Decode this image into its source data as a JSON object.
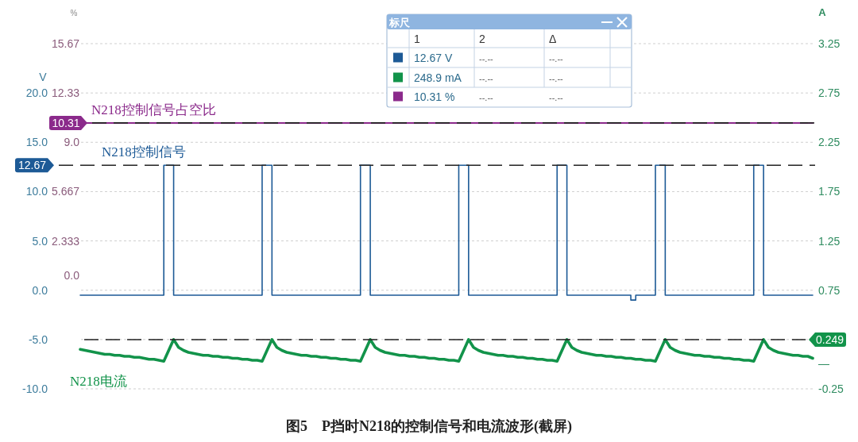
{
  "chart_data": [
    {
      "type": "line",
      "title": "图5　P挡时N218的控制信号和电流波形(截屏)",
      "ylabel": "V",
      "y2label": "A",
      "y3label": "%",
      "annotations": [
        "—"
      ],
      "grid": "y",
      "tick_labels": "y",
      "categories": [
        null,
        null,
        null,
        null,
        null,
        null,
        null,
        null,
        null,
        null,
        null,
        null,
        null,
        null,
        null,
        null,
        null,
        null,
        null,
        null,
        null,
        null,
        null,
        null,
        null,
        null,
        null,
        null,
        null,
        null,
        null,
        null,
        null,
        null,
        null,
        null,
        null,
        null,
        null,
        null,
        null,
        null,
        null,
        null,
        null,
        null,
        null,
        null,
        null,
        null,
        null,
        null,
        null,
        null,
        null,
        null,
        null,
        null,
        null,
        null,
        null,
        null,
        null,
        null,
        null,
        null,
        null,
        null,
        null,
        null,
        null,
        null,
        null,
        null,
        null,
        null,
        null,
        null,
        null,
        null,
        null,
        null,
        null,
        null,
        null,
        null,
        null,
        null,
        null,
        null,
        null,
        null,
        null,
        null,
        null,
        null,
        null,
        null,
        null,
        null,
        null,
        null,
        null,
        null,
        null,
        null,
        null,
        null,
        null,
        null,
        null,
        null,
        null,
        null,
        null,
        null,
        null,
        null,
        null,
        null,
        null,
        null,
        null,
        null,
        null,
        null,
        null,
        null,
        null,
        null,
        null,
        null,
        null,
        null,
        null,
        null,
        null,
        null,
        null,
        null,
        null,
        null,
        null,
        null,
        null,
        null,
        null,
        null,
        null,
        null
      ],
      "ylim": [
        -10,
        25
      ],
      "yticks": [
        {
          "value": -10,
          "label": "-10.0"
        },
        {
          "value": -5,
          "label": "-5.0"
        },
        {
          "value": 0,
          "label": "0.0"
        },
        {
          "value": 5,
          "label": "5.0"
        },
        {
          "value": 10,
          "label": "10.0"
        },
        {
          "value": 15,
          "label": "15.0"
        },
        {
          "value": 20,
          "label": "20.0"
        }
      ],
      "y2lim": [
        -0.25,
        3.25
      ],
      "y2ticks": [
        -0.25,
        {
          "value": 0.25,
          "label": null
        },
        0.75,
        1.25,
        1.75,
        2.25,
        2.75,
        3.25
      ],
      "y3lim": [
        -7.667,
        15.67
      ],
      "y3ticks": [
        {
          "value": 0,
          "label": "0.0"
        },
        2.333,
        5.667,
        {
          "value": 9,
          "label": "9.0"
        },
        12.33,
        15.67
      ],
      "series": [
        {
          "name": "N218控制信号",
          "type": "step",
          "color": "#1d5a96",
          "axis": "y",
          "values": [
            -0.5,
            -0.5,
            -0.5,
            -0.5,
            -0.5,
            -0.5,
            -0.5,
            -0.5,
            -0.5,
            -0.5,
            -0.5,
            -0.5,
            -0.5,
            -0.5,
            -0.5,
            -0.5,
            -0.5,
            12.67,
            12.67,
            -0.5,
            -0.5,
            -0.5,
            -0.5,
            -0.5,
            -0.5,
            -0.5,
            -0.5,
            -0.5,
            -0.5,
            -0.5,
            -0.5,
            -0.5,
            -0.5,
            -0.5,
            -0.5,
            -0.5,
            -0.5,
            12.67,
            12.67,
            -0.5,
            -0.5,
            -0.5,
            -0.5,
            -0.5,
            -0.5,
            -0.5,
            -0.5,
            -0.5,
            -0.5,
            -0.5,
            -0.5,
            -0.5,
            -0.5,
            -0.5,
            -0.5,
            -0.5,
            -0.5,
            12.67,
            12.67,
            -0.5,
            -0.5,
            -0.5,
            -0.5,
            -0.5,
            -0.5,
            -0.5,
            -0.5,
            -0.5,
            -0.5,
            -0.5,
            -0.5,
            -0.5,
            -0.5,
            -0.5,
            -0.5,
            -0.5,
            -0.5,
            12.67,
            12.67,
            -0.5,
            -0.5,
            -0.5,
            -0.5,
            -0.5,
            -0.5,
            -0.5,
            -0.5,
            -0.5,
            -0.5,
            -0.5,
            -0.5,
            -0.5,
            -0.5,
            -0.5,
            -0.5,
            -0.5,
            -0.5,
            12.67,
            12.67,
            -0.5,
            -0.5,
            -0.5,
            -0.5,
            -0.5,
            -0.5,
            -0.5,
            -0.5,
            -0.5,
            -0.5,
            -0.5,
            -0.5,
            -0.5,
            -1.0,
            -0.5,
            -0.5,
            -0.5,
            -0.5,
            12.67,
            12.67,
            -0.5,
            -0.5,
            -0.5,
            -0.5,
            -0.5,
            -0.5,
            -0.5,
            -0.5,
            -0.5,
            -0.5,
            -0.5,
            -0.5,
            -0.5,
            -0.5,
            -0.5,
            -0.5,
            -0.5,
            -0.5,
            12.67,
            12.67,
            -0.5,
            -0.5,
            -0.5,
            -0.5,
            -0.5,
            -0.5,
            -0.5,
            -0.5,
            -0.5,
            -0.5,
            -0.5
          ]
        },
        {
          "name": "N218电流",
          "color": "#12934a",
          "axis": "y2",
          "values": [
            0.15,
            0.14,
            0.13,
            0.12,
            0.11,
            0.1,
            0.1,
            0.09,
            0.09,
            0.08,
            0.08,
            0.07,
            0.07,
            0.06,
            0.05,
            0.05,
            0.04,
            0.03,
            0.14,
            0.25,
            0.17,
            0.14,
            0.12,
            0.11,
            0.1,
            0.09,
            0.09,
            0.08,
            0.08,
            0.07,
            0.07,
            0.06,
            0.06,
            0.05,
            0.05,
            0.04,
            0.04,
            0.03,
            0.14,
            0.25,
            0.17,
            0.14,
            0.12,
            0.11,
            0.1,
            0.09,
            0.09,
            0.08,
            0.08,
            0.07,
            0.07,
            0.06,
            0.06,
            0.05,
            0.05,
            0.04,
            0.04,
            0.03,
            0.14,
            0.25,
            0.17,
            0.14,
            0.12,
            0.11,
            0.1,
            0.09,
            0.09,
            0.08,
            0.08,
            0.07,
            0.07,
            0.06,
            0.06,
            0.05,
            0.05,
            0.04,
            0.04,
            0.03,
            0.14,
            0.25,
            0.17,
            0.14,
            0.12,
            0.11,
            0.1,
            0.09,
            0.09,
            0.08,
            0.08,
            0.07,
            0.07,
            0.06,
            0.06,
            0.05,
            0.05,
            0.04,
            0.04,
            0.03,
            0.14,
            0.25,
            0.17,
            0.14,
            0.12,
            0.11,
            0.1,
            0.09,
            0.09,
            0.08,
            0.08,
            0.07,
            0.07,
            0.06,
            0.06,
            0.05,
            0.05,
            0.04,
            0.04,
            0.03,
            0.14,
            0.25,
            0.17,
            0.14,
            0.12,
            0.11,
            0.1,
            0.09,
            0.09,
            0.08,
            0.08,
            0.07,
            0.07,
            0.06,
            0.06,
            0.05,
            0.05,
            0.04,
            0.04,
            0.03,
            0.14,
            0.25,
            0.17,
            0.14,
            0.12,
            0.11,
            0.1,
            0.09,
            0.09,
            0.08,
            0.08,
            0.06
          ]
        },
        {
          "name": "N218控制信号占空比",
          "color": "#8b2a8b",
          "axis": "y3",
          "values": [
            null,
            10.31,
            10.31,
            10.31,
            10.31,
            10.31,
            10.31,
            10.31,
            10.31,
            10.31,
            10.31,
            10.31,
            10.31,
            10.31,
            10.31,
            10.31,
            10.31,
            10.31,
            10.31,
            10.31,
            10.31,
            10.31,
            10.31,
            10.31,
            10.31,
            10.31,
            10.31,
            10.31,
            10.31,
            10.31,
            10.31,
            10.31,
            10.31,
            10.31,
            10.31,
            10.31,
            10.31,
            10.31,
            10.31,
            10.31,
            10.31,
            10.31,
            10.31,
            10.31,
            10.31,
            10.31,
            10.31,
            10.31,
            10.31,
            10.31,
            10.31,
            10.31,
            10.31,
            10.31,
            10.31,
            10.31,
            10.31,
            10.31,
            10.31,
            10.31,
            10.31,
            10.31,
            10.31,
            10.31,
            10.31,
            10.31,
            10.31,
            10.31,
            10.31,
            10.31,
            10.31,
            10.31,
            10.31,
            10.31,
            10.31,
            10.31,
            10.31,
            10.31,
            10.31,
            10.31,
            10.31,
            10.31,
            10.31,
            10.31,
            10.31,
            10.31,
            10.31,
            10.31,
            10.31,
            10.31,
            10.31,
            10.31,
            10.31,
            10.31,
            10.31,
            10.31,
            10.31,
            10.31,
            10.31,
            10.31,
            10.31,
            10.31,
            10.31,
            10.31,
            10.31,
            10.31,
            10.31,
            10.31,
            10.31,
            10.31,
            10.31,
            10.31,
            10.31,
            10.31,
            10.31,
            10.31,
            10.31,
            10.31,
            10.31,
            10.31,
            10.31,
            10.31,
            10.31,
            10.31,
            10.31,
            10.31,
            10.31,
            10.31,
            10.31,
            10.31,
            10.31,
            10.31,
            10.31,
            10.31,
            10.31,
            10.31,
            10.31,
            10.31,
            10.31,
            10.31,
            10.31,
            10.31,
            10.31,
            10.31,
            10.31,
            10.31,
            10.31,
            10.31,
            10.31,
            10.31
          ]
        }
      ],
      "ref_lines": [
        {
          "axis": "y",
          "value": 12.67,
          "label": "12.67",
          "color": "#222222",
          "line_style": "dashed"
        },
        {
          "axis": "y3",
          "value": 10.31,
          "label": "10.31",
          "color": "#222222",
          "line_style": "dashed"
        },
        {
          "axis": "y2",
          "value": 0.249,
          "label": "0.249",
          "color": "#222222",
          "line_style": "dashed"
        }
      ]
    },
    {
      "type": "other",
      "title": "标尺",
      "categories": [
        "12.67 V",
        "248.9 mA",
        "10.31 %"
      ],
      "colors": [
        "#1d5a96",
        "#12934a",
        "#8b2a8b"
      ],
      "annotations": [
        "1",
        "2",
        "Δ",
        "--.--",
        "--.--",
        "--.--",
        "--.--",
        "--.--",
        "--.--"
      ]
    }
  ]
}
